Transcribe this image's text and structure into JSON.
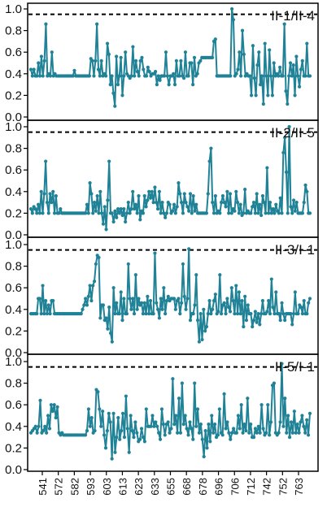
{
  "chart_data": {
    "type": "line",
    "line_color": "#1f8296",
    "threshold_line": {
      "value": 0.95,
      "style": "dashed",
      "color": "#000000"
    },
    "x_tick_labels": [
      "541",
      "572",
      "582",
      "593",
      "603",
      "613",
      "623",
      "633",
      "655",
      "668",
      "678",
      "696",
      "706",
      "712",
      "742",
      "752",
      "763"
    ],
    "panels": [
      {
        "title": "II-1/II-4",
        "ylim": [
          0,
          1.1
        ],
        "yticks": [
          "0.0",
          "0.2",
          "0.4",
          "0.6",
          "0.8",
          "1.0"
        ],
        "values": [
          0.44,
          0.38,
          0.44,
          0.38,
          0.38,
          0.5,
          0.38,
          0.56,
          0.38,
          0.52,
          0.86,
          0.38,
          0.4,
          0.38,
          0.6,
          0.38,
          0.4,
          0.38,
          0.38,
          0.38,
          0.38,
          0.38,
          0.38,
          0.38,
          0.38,
          0.38,
          0.38,
          0.38,
          0.38,
          0.43,
          0.38,
          0.38,
          0.38,
          0.38,
          0.38,
          0.38,
          0.38,
          0.38,
          0.38,
          0.38,
          0.54,
          0.52,
          0.38,
          0.52,
          0.86,
          0.44,
          0.38,
          0.52,
          0.38,
          0.4,
          0.38,
          0.68,
          0.58,
          0.3,
          0.38,
          0.22,
          0.1,
          0.56,
          0.3,
          0.38,
          0.55,
          0.2,
          0.38,
          0.6,
          0.4,
          0.38,
          0.36,
          0.38,
          0.65,
          0.38,
          0.52,
          0.42,
          0.38,
          0.52,
          0.55,
          0.44,
          0.38,
          0.38,
          0.46,
          0.42,
          0.38,
          0.4,
          0.4,
          0.42,
          0.3,
          0.38,
          0.34,
          0.38,
          0.38,
          0.38,
          0.6,
          0.38,
          0.3,
          0.38,
          0.38,
          0.4,
          0.3,
          0.52,
          0.38,
          0.38,
          0.52,
          0.38,
          0.36,
          0.6,
          0.38,
          0.38,
          0.5,
          0.5,
          0.3,
          0.55,
          0.38,
          0.4,
          0.5,
          0.52,
          0.55,
          0.55,
          0.55,
          0.55,
          0.55,
          0.55,
          0.55,
          0.55,
          0.7,
          0.72,
          0.38,
          0.38,
          0.38,
          0.38,
          0.38,
          0.38,
          0.38,
          0.38,
          0.38,
          0.38,
          1.0,
          0.9,
          0.38,
          0.4,
          0.44,
          0.6,
          0.38,
          0.8,
          0.58,
          0.38,
          0.4,
          0.38,
          0.38,
          0.2,
          0.66,
          0.36,
          0.2,
          0.48,
          0.6,
          0.3,
          0.38,
          0.12,
          0.68,
          0.38,
          0.2,
          0.62,
          0.38,
          0.2,
          0.5,
          0.38,
          0.4,
          0.38,
          0.46,
          0.38,
          0.38,
          0.86,
          0.24,
          0.12,
          0.38,
          0.5,
          0.38,
          0.48,
          0.2,
          0.56,
          0.38,
          0.28,
          0.44,
          0.52,
          0.38,
          0.38,
          0.68,
          0.38,
          0.38
        ]
      },
      {
        "title": "II-2/II-5",
        "ylim": [
          0,
          1.1
        ],
        "yticks": [
          "0.0",
          "0.2",
          "0.4",
          "0.6",
          "0.8",
          "1.0"
        ],
        "values": [
          0.24,
          0.2,
          0.26,
          0.24,
          0.2,
          0.28,
          0.2,
          0.4,
          0.2,
          0.38,
          0.68,
          0.3,
          0.2,
          0.38,
          0.3,
          0.4,
          0.2,
          0.36,
          0.2,
          0.2,
          0.24,
          0.2,
          0.2,
          0.2,
          0.2,
          0.2,
          0.2,
          0.2,
          0.2,
          0.2,
          0.2,
          0.2,
          0.2,
          0.2,
          0.2,
          0.2,
          0.2,
          0.2,
          0.28,
          0.2,
          0.48,
          0.38,
          0.2,
          0.3,
          0.22,
          0.36,
          0.2,
          0.4,
          0.2,
          0.1,
          0.26,
          0.05,
          0.32,
          0.68,
          0.2,
          0.2,
          0.12,
          0.22,
          0.16,
          0.24,
          0.2,
          0.24,
          0.18,
          0.24,
          0.12,
          0.2,
          0.3,
          0.2,
          0.24,
          0.4,
          0.24,
          0.28,
          0.2,
          0.36,
          0.14,
          0.22,
          0.2,
          0.36,
          0.26,
          0.32,
          0.4,
          0.34,
          0.4,
          0.3,
          0.44,
          0.3,
          0.24,
          0.4,
          0.2,
          0.3,
          0.2,
          0.16,
          0.2,
          0.3,
          0.28,
          0.2,
          0.22,
          0.28,
          0.2,
          0.26,
          0.48,
          0.38,
          0.3,
          0.2,
          0.38,
          0.3,
          0.26,
          0.22,
          0.38,
          0.2,
          0.36,
          0.22,
          0.28,
          0.2,
          0.2,
          0.2,
          0.2,
          0.2,
          0.2,
          0.2,
          0.38,
          0.68,
          0.8,
          0.3,
          0.2,
          0.36,
          0.2,
          0.22,
          0.2,
          0.3,
          0.36,
          0.3,
          0.26,
          0.4,
          0.2,
          0.38,
          0.2,
          0.24,
          0.22,
          0.4,
          0.3,
          0.2,
          0.28,
          0.18,
          0.2,
          0.42,
          0.2,
          0.22,
          0.2,
          0.2,
          0.26,
          0.3,
          0.2,
          0.38,
          0.2,
          0.28,
          0.18,
          0.36,
          0.3,
          0.2,
          0.62,
          0.2,
          0.3,
          0.2,
          0.24,
          0.2,
          0.28,
          0.22,
          0.2,
          0.34,
          0.2,
          0.76,
          0.9,
          0.58,
          0.2,
          1.0,
          0.26,
          0.2,
          0.32,
          0.22,
          0.3,
          0.2,
          0.2,
          0.2,
          0.2,
          0.3,
          0.46,
          0.4,
          0.2,
          0.2
        ]
      },
      {
        "title": "II-3/I-1",
        "ylim": [
          0,
          1.1
        ],
        "yticks": [
          "0.0",
          "0.2",
          "0.4",
          "0.6",
          "0.8",
          "1.0"
        ],
        "values": [
          0.36,
          0.36,
          0.36,
          0.36,
          0.36,
          0.5,
          0.5,
          0.36,
          0.62,
          0.36,
          0.48,
          0.36,
          0.44,
          0.36,
          0.48,
          0.48,
          0.36,
          0.36,
          0.36,
          0.36,
          0.36,
          0.36,
          0.36,
          0.36,
          0.36,
          0.36,
          0.36,
          0.36,
          0.36,
          0.36,
          0.36,
          0.36,
          0.36,
          0.36,
          0.36,
          0.4,
          0.44,
          0.5,
          0.44,
          0.52,
          0.62,
          0.48,
          0.62,
          0.66,
          0.82,
          0.9,
          0.88,
          0.32,
          0.44,
          0.44,
          0.3,
          0.32,
          0.22,
          0.42,
          0.18,
          0.1,
          0.6,
          0.36,
          0.46,
          0.36,
          0.36,
          0.56,
          0.3,
          0.5,
          0.36,
          0.36,
          0.82,
          0.5,
          0.4,
          0.5,
          0.36,
          0.72,
          0.4,
          0.5,
          0.44,
          0.46,
          0.36,
          0.46,
          0.36,
          0.52,
          0.36,
          0.48,
          0.36,
          0.36,
          0.92,
          0.46,
          0.4,
          0.32,
          0.5,
          0.4,
          0.6,
          0.36,
          0.48,
          0.52,
          0.48,
          0.5,
          0.5,
          0.5,
          0.4,
          0.48,
          0.5,
          0.36,
          0.46,
          0.82,
          0.52,
          0.4,
          0.5,
          0.96,
          0.3,
          0.36,
          0.36,
          0.44,
          0.72,
          0.3,
          0.1,
          0.36,
          0.12,
          0.4,
          0.2,
          0.24,
          0.36,
          0.48,
          0.36,
          0.4,
          0.48,
          0.54,
          0.36,
          0.38,
          0.72,
          0.36,
          0.44,
          0.46,
          0.36,
          0.5,
          0.42,
          0.38,
          0.6,
          0.48,
          0.36,
          0.62,
          0.36,
          0.56,
          0.36,
          0.48,
          0.24,
          0.52,
          0.3,
          0.44,
          0.36,
          0.36,
          0.24,
          0.3,
          0.38,
          0.28,
          0.36,
          0.26,
          0.36,
          0.48,
          0.36,
          0.36,
          0.38,
          0.48,
          0.36,
          0.68,
          0.42,
          0.36,
          0.56,
          0.36,
          0.36,
          0.3,
          0.46,
          0.36,
          0.3,
          0.36,
          0.36,
          0.36,
          0.36,
          0.26,
          0.36,
          0.56,
          0.36,
          0.36,
          0.44,
          0.42,
          0.36,
          0.48,
          0.36,
          0.36,
          0.46,
          0.5
        ]
      },
      {
        "title": "II-5/I-1",
        "ylim": [
          0,
          1.1
        ],
        "yticks": [
          "0.0",
          "0.2",
          "0.4",
          "0.6",
          "0.8",
          "1.0"
        ],
        "values": [
          0.34,
          0.36,
          0.38,
          0.4,
          0.34,
          0.4,
          0.64,
          0.34,
          0.36,
          0.4,
          0.34,
          0.5,
          0.38,
          0.6,
          0.54,
          0.6,
          0.48,
          0.58,
          0.34,
          0.32,
          0.34,
          0.32,
          0.32,
          0.32,
          0.32,
          0.32,
          0.32,
          0.32,
          0.32,
          0.32,
          0.32,
          0.32,
          0.32,
          0.32,
          0.32,
          0.32,
          0.36,
          0.56,
          0.4,
          0.48,
          0.34,
          0.36,
          0.74,
          0.72,
          0.56,
          0.4,
          0.54,
          0.32,
          0.2,
          0.36,
          0.52,
          0.44,
          0.1,
          0.52,
          0.16,
          0.3,
          0.48,
          0.28,
          0.36,
          0.52,
          0.3,
          0.68,
          0.38,
          0.16,
          0.5,
          0.36,
          0.3,
          0.44,
          0.34,
          0.26,
          0.28,
          0.38,
          0.3,
          0.26,
          0.56,
          0.4,
          0.4,
          0.4,
          0.5,
          0.4,
          0.44,
          0.4,
          0.34,
          0.28,
          0.56,
          0.42,
          0.32,
          0.42,
          0.44,
          0.34,
          0.38,
          0.84,
          0.42,
          0.5,
          0.34,
          0.66,
          0.34,
          0.8,
          0.42,
          0.5,
          0.38,
          0.32,
          0.44,
          0.38,
          0.28,
          0.8,
          0.4,
          0.56,
          0.34,
          0.42,
          0.28,
          0.12,
          0.36,
          0.2,
          0.42,
          0.26,
          0.5,
          0.34,
          0.42,
          0.3,
          0.32,
          0.56,
          0.34,
          0.32,
          0.7,
          0.38,
          0.44,
          0.34,
          0.28,
          0.34,
          0.38,
          0.34,
          0.34,
          0.5,
          0.38,
          0.6,
          0.34,
          0.42,
          0.36,
          0.66,
          0.34,
          0.42,
          0.3,
          0.3,
          0.38,
          0.34,
          0.4,
          0.34,
          0.6,
          0.38,
          0.32,
          0.34,
          0.6,
          0.32,
          0.44,
          0.78,
          0.8,
          0.34,
          0.32,
          0.34,
          0.44,
          0.98,
          0.4,
          0.66,
          0.34,
          0.5,
          0.3,
          0.44,
          0.34,
          0.54,
          0.34,
          0.42,
          0.34,
          0.44,
          0.5,
          0.4,
          0.34,
          0.46,
          0.32,
          0.52
        ]
      }
    ]
  }
}
